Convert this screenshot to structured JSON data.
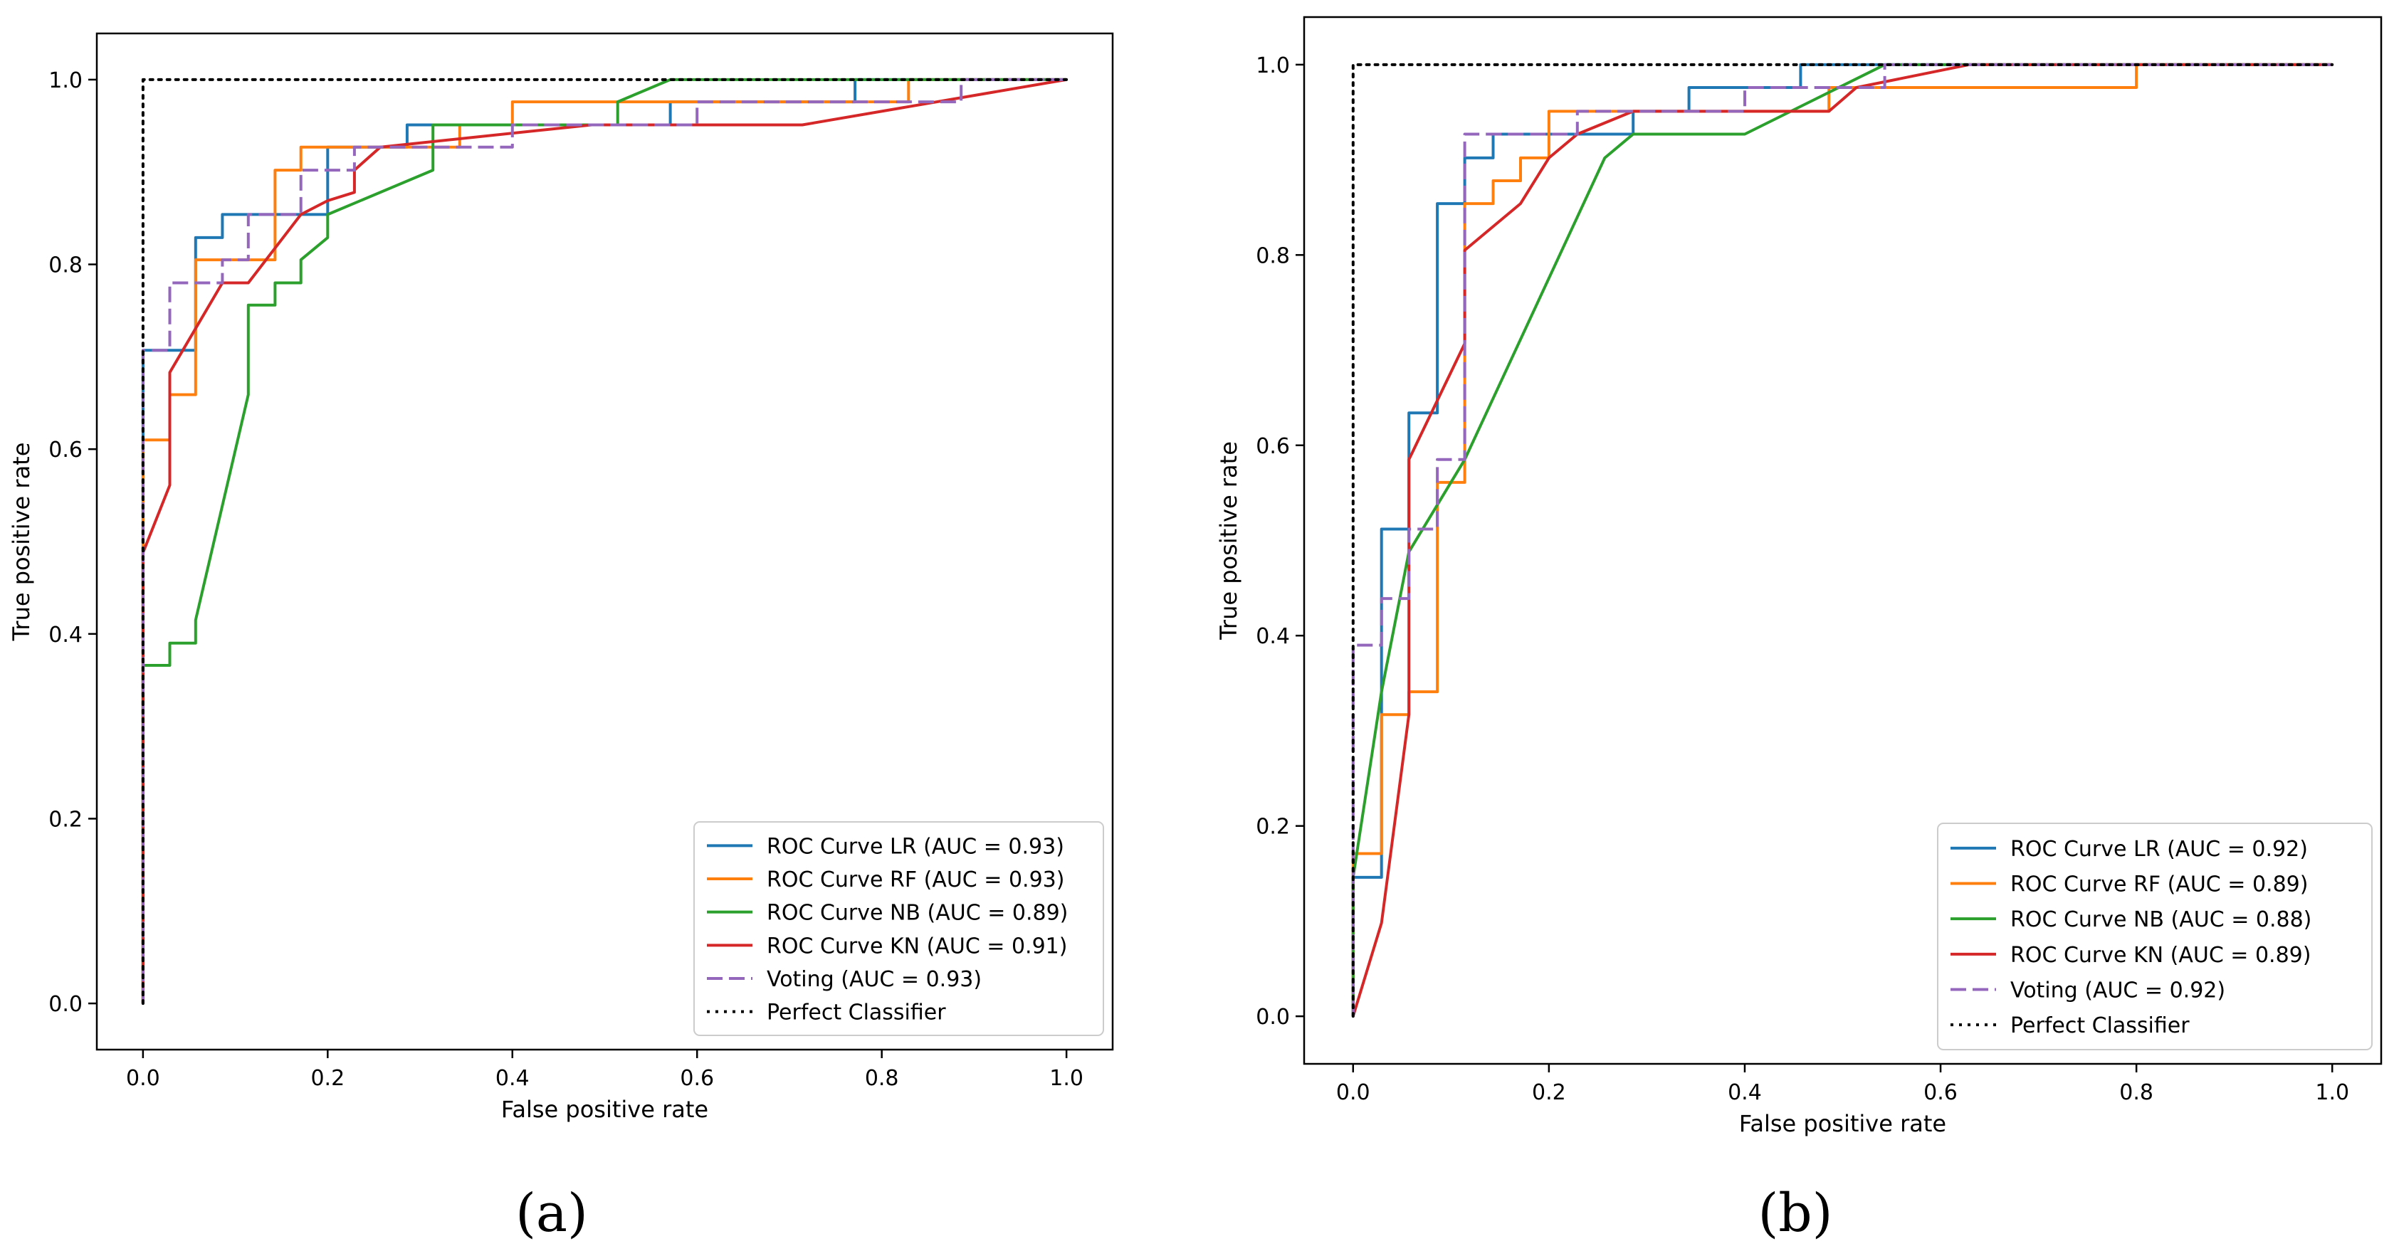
{
  "chart_data": [
    {
      "type": "line",
      "panel_label": "(a)",
      "xlabel": "False positive rate",
      "ylabel": "True positive rate",
      "xlim": [
        -0.05,
        1.05
      ],
      "ylim": [
        -0.05,
        1.05
      ],
      "xticks": [
        0.0,
        0.2,
        0.4,
        0.6,
        0.8,
        1.0
      ],
      "yticks": [
        0.0,
        0.2,
        0.4,
        0.6,
        0.8,
        1.0
      ],
      "xtick_labels": [
        "0.0",
        "0.2",
        "0.4",
        "0.6",
        "0.8",
        "1.0"
      ],
      "ytick_labels": [
        "0.0",
        "0.2",
        "0.4",
        "0.6",
        "0.8",
        "1.0"
      ],
      "legend_position": "lower-right",
      "series": [
        {
          "name": "ROC Curve LR  (AUC = 0.93)",
          "color": "#1f77b4",
          "dash": "solid",
          "x": [
            0,
            0,
            0.057,
            0.057,
            0.086,
            0.086,
            0.2,
            0.2,
            0.286,
            0.286,
            0.571,
            0.571,
            0.771,
            0.771,
            1.0
          ],
          "y": [
            0,
            0.707,
            0.707,
            0.829,
            0.829,
            0.854,
            0.854,
            0.927,
            0.927,
            0.951,
            0.951,
            0.976,
            0.976,
            1.0,
            1.0
          ]
        },
        {
          "name": "ROC Curve RF (AUC = 0.93)",
          "color": "#ff7f0e",
          "dash": "solid",
          "x": [
            0,
            0,
            0.029,
            0.029,
            0.057,
            0.057,
            0.143,
            0.143,
            0.171,
            0.171,
            0.343,
            0.343,
            0.4,
            0.4,
            0.829,
            0.829,
            1.0
          ],
          "y": [
            0,
            0.61,
            0.61,
            0.659,
            0.659,
            0.805,
            0.805,
            0.902,
            0.902,
            0.927,
            0.927,
            0.951,
            0.951,
            0.976,
            0.976,
            1.0,
            1.0
          ]
        },
        {
          "name": "ROC Curve NB (AUC = 0.89)",
          "color": "#2ca02c",
          "dash": "solid",
          "x": [
            0,
            0,
            0.029,
            0.029,
            0.057,
            0.057,
            0.114,
            0.114,
            0.143,
            0.143,
            0.171,
            0.171,
            0.2,
            0.2,
            0.314,
            0.314,
            0.514,
            0.514,
            0.571,
            1.0
          ],
          "y": [
            0,
            0.366,
            0.366,
            0.39,
            0.39,
            0.415,
            0.659,
            0.756,
            0.756,
            0.78,
            0.78,
            0.805,
            0.829,
            0.854,
            0.902,
            0.951,
            0.951,
            0.976,
            1.0,
            1.0
          ]
        },
        {
          "name": "ROC Curve KN (AUC = 0.91)",
          "color": "#d62728",
          "dash": "solid",
          "x": [
            0,
            0,
            0.029,
            0.029,
            0.086,
            0.114,
            0.171,
            0.2,
            0.229,
            0.229,
            0.257,
            0.486,
            0.714,
            1.0
          ],
          "y": [
            0,
            0.488,
            0.561,
            0.683,
            0.78,
            0.78,
            0.854,
            0.869,
            0.878,
            0.902,
            0.927,
            0.951,
            0.951,
            1.0
          ]
        },
        {
          "name": "Voting (AUC = 0.93)",
          "color": "#9467bd",
          "dash": "dashed",
          "x": [
            0,
            0,
            0.029,
            0.029,
            0.086,
            0.086,
            0.114,
            0.114,
            0.171,
            0.171,
            0.229,
            0.229,
            0.4,
            0.4,
            0.6,
            0.6,
            0.886,
            0.886,
            1.0
          ],
          "y": [
            0,
            0.707,
            0.707,
            0.78,
            0.78,
            0.805,
            0.805,
            0.854,
            0.854,
            0.902,
            0.902,
            0.927,
            0.927,
            0.951,
            0.951,
            0.976,
            0.976,
            1.0,
            1.0
          ]
        },
        {
          "name": "Perfect Classifier",
          "color": "#000000",
          "dash": "dotted",
          "x": [
            0,
            0,
            1.0
          ],
          "y": [
            0,
            1.0,
            1.0
          ]
        }
      ]
    },
    {
      "type": "line",
      "panel_label": "(b)",
      "xlabel": "False positive rate",
      "ylabel": "True positive rate",
      "xlim": [
        -0.05,
        1.05
      ],
      "ylim": [
        -0.05,
        1.05
      ],
      "xticks": [
        0.0,
        0.2,
        0.4,
        0.6,
        0.8,
        1.0
      ],
      "yticks": [
        0.0,
        0.2,
        0.4,
        0.6,
        0.8,
        1.0
      ],
      "xtick_labels": [
        "0.0",
        "0.2",
        "0.4",
        "0.6",
        "0.8",
        "1.0"
      ],
      "ytick_labels": [
        "0.0",
        "0.2",
        "0.4",
        "0.6",
        "0.8",
        "1.0"
      ],
      "legend_position": "lower-right",
      "series": [
        {
          "name": "ROC Curve LR  (AUC = 0.92)",
          "color": "#1f77b4",
          "dash": "solid",
          "x": [
            0,
            0,
            0.029,
            0.029,
            0.057,
            0.057,
            0.086,
            0.086,
            0.114,
            0.114,
            0.143,
            0.143,
            0.286,
            0.286,
            0.343,
            0.343,
            0.457,
            0.457,
            1.0
          ],
          "y": [
            0,
            0.146,
            0.146,
            0.512,
            0.512,
            0.634,
            0.634,
            0.854,
            0.854,
            0.902,
            0.902,
            0.927,
            0.927,
            0.951,
            0.951,
            0.976,
            0.976,
            1.0,
            1.0
          ]
        },
        {
          "name": "ROC Curve RF (AUC = 0.89)",
          "color": "#ff7f0e",
          "dash": "solid",
          "x": [
            0,
            0,
            0.029,
            0.029,
            0.057,
            0.057,
            0.086,
            0.086,
            0.114,
            0.114,
            0.143,
            0.143,
            0.171,
            0.171,
            0.2,
            0.2,
            0.486,
            0.486,
            0.8,
            0.8,
            1.0
          ],
          "y": [
            0,
            0.171,
            0.171,
            0.317,
            0.317,
            0.341,
            0.341,
            0.561,
            0.561,
            0.854,
            0.854,
            0.878,
            0.878,
            0.902,
            0.902,
            0.951,
            0.951,
            0.976,
            0.976,
            1.0,
            1.0
          ]
        },
        {
          "name": "ROC Curve NB (AUC = 0.88)",
          "color": "#2ca02c",
          "dash": "solid",
          "x": [
            0,
            0,
            0.029,
            0.057,
            0.114,
            0.257,
            0.286,
            0.4,
            0.543,
            1.0
          ],
          "y": [
            0,
            0.146,
            0.341,
            0.488,
            0.585,
            0.902,
            0.927,
            0.927,
            1.0,
            1.0
          ]
        },
        {
          "name": "ROC Curve KN (AUC = 0.89)",
          "color": "#d62728",
          "dash": "solid",
          "x": [
            0,
            0.029,
            0.057,
            0.057,
            0.114,
            0.114,
            0.171,
            0.2,
            0.229,
            0.286,
            0.486,
            0.514,
            0.629,
            1.0
          ],
          "y": [
            0,
            0.098,
            0.317,
            0.585,
            0.707,
            0.805,
            0.854,
            0.902,
            0.927,
            0.951,
            0.951,
            0.976,
            1.0,
            1.0
          ]
        },
        {
          "name": "Voting (AUC = 0.92)",
          "color": "#9467bd",
          "dash": "dashed",
          "x": [
            0,
            0,
            0.029,
            0.029,
            0.057,
            0.057,
            0.086,
            0.086,
            0.114,
            0.114,
            0.229,
            0.229,
            0.4,
            0.4,
            0.543,
            0.543,
            1.0
          ],
          "y": [
            0,
            0.39,
            0.39,
            0.439,
            0.439,
            0.512,
            0.512,
            0.585,
            0.585,
            0.927,
            0.927,
            0.951,
            0.951,
            0.976,
            0.976,
            1.0,
            1.0
          ]
        },
        {
          "name": "Perfect Classifier",
          "color": "#000000",
          "dash": "dotted",
          "x": [
            0,
            0,
            1.0
          ],
          "y": [
            0,
            1.0,
            1.0
          ]
        }
      ]
    }
  ]
}
